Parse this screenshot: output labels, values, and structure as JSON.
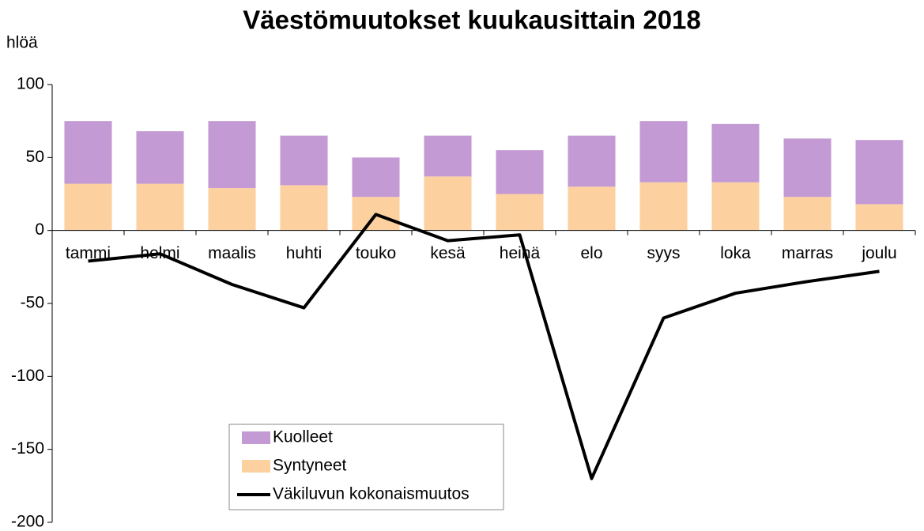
{
  "chart_data": {
    "type": "bar",
    "title": "Väestömuutokset kuukausittain 2018",
    "y_label": "hlöä",
    "categories": [
      "tammi",
      "helmi",
      "maalis",
      "huhti",
      "touko",
      "kesä",
      "heinä",
      "elo",
      "syys",
      "loka",
      "marras",
      "joulu"
    ],
    "series": [
      {
        "name": "Syntyneet",
        "color": "#fcd09f",
        "kind": "bar",
        "values": [
          32,
          32,
          29,
          31,
          23,
          37,
          25,
          30,
          33,
          33,
          23,
          18
        ]
      },
      {
        "name": "Kuolleet",
        "color": "#c49ad4",
        "kind": "bar",
        "values": [
          43,
          36,
          46,
          34,
          27,
          28,
          30,
          35,
          42,
          40,
          40,
          44
        ]
      },
      {
        "name": "Väkiluvun kokonaismuutos",
        "color": "#000000",
        "kind": "line",
        "values": [
          -21,
          -16,
          -37,
          -53,
          11,
          -7,
          -3,
          -170,
          -60,
          -43,
          -35,
          -28
        ]
      }
    ],
    "stacked": true,
    "ylim": [
      -200,
      100
    ],
    "yticks": [
      -200,
      -150,
      -100,
      -50,
      0,
      50,
      100
    ]
  }
}
